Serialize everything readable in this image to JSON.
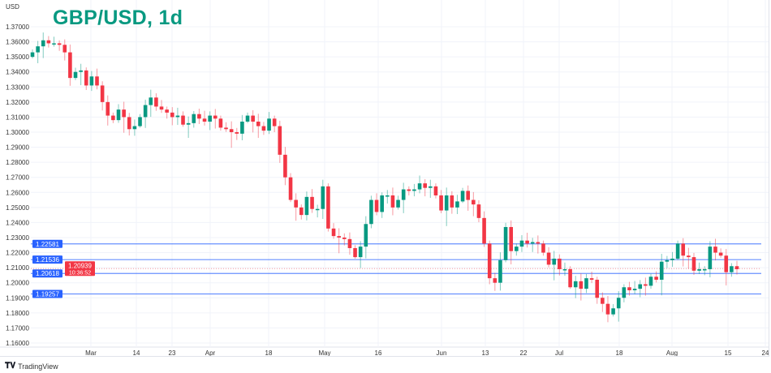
{
  "chart_data": {
    "type": "candlestick",
    "title": "GBP/USD, 1d",
    "ylabel": "USD",
    "ylim": [
      1.155,
      1.375
    ],
    "y_ticks": [
      "1.37000",
      "1.36000",
      "1.35000",
      "1.34000",
      "1.33000",
      "1.32000",
      "1.31000",
      "1.30000",
      "1.29000",
      "1.28000",
      "1.27000",
      "1.26000",
      "1.25000",
      "1.24000",
      "1.23000",
      "1.22000",
      "1.21000",
      "1.20000",
      "1.19000",
      "1.18000",
      "1.17000",
      "1.16000"
    ],
    "x_ticks": [
      "Mar",
      "14",
      "23",
      "Apr",
      "18",
      "May",
      "16",
      "Jun",
      "13",
      "22",
      "Jul",
      "18",
      "Aug",
      "15",
      "24"
    ],
    "close": [
      1.353,
      1.357,
      1.361,
      1.359,
      1.359,
      1.358,
      1.353,
      1.336,
      1.34,
      1.341,
      1.331,
      1.337,
      1.331,
      1.32,
      1.311,
      1.308,
      1.315,
      1.31,
      1.302,
      1.304,
      1.31,
      1.318,
      1.323,
      1.317,
      1.315,
      1.313,
      1.31,
      1.311,
      1.305,
      1.306,
      1.312,
      1.309,
      1.307,
      1.311,
      1.309,
      1.303,
      1.302,
      1.3,
      1.299,
      1.307,
      1.311,
      1.307,
      1.304,
      1.301,
      1.309,
      1.304,
      1.285,
      1.27,
      1.255,
      1.25,
      1.245,
      1.257,
      1.249,
      1.249,
      1.264,
      1.236,
      1.231,
      1.23,
      1.229,
      1.223,
      1.217,
      1.224,
      1.239,
      1.255,
      1.247,
      1.258,
      1.258,
      1.25,
      1.255,
      1.262,
      1.261,
      1.262,
      1.266,
      1.263,
      1.264,
      1.258,
      1.248,
      1.258,
      1.25,
      1.254,
      1.261,
      1.255,
      1.252,
      1.243,
      1.226,
      1.203,
      1.2,
      1.215,
      1.237,
      1.221,
      1.224,
      1.228,
      1.226,
      1.227,
      1.226,
      1.22,
      1.212,
      1.216,
      1.209,
      1.209,
      1.197,
      1.201,
      1.196,
      1.203,
      1.202,
      1.19,
      1.186,
      1.179,
      1.183,
      1.19,
      1.197,
      1.195,
      1.196,
      1.199,
      1.198,
      1.204,
      1.202,
      1.214,
      1.215,
      1.216,
      1.226,
      1.218,
      1.217,
      1.208,
      1.209,
      1.209,
      1.224,
      1.22,
      1.218,
      1.207,
      1.211,
      1.209
    ],
    "first_open": 1.35,
    "levels": [
      {
        "value": 1.22581,
        "label": "1.22581"
      },
      {
        "value": 1.21536,
        "label": "1.21536"
      },
      {
        "value": 1.20618,
        "label": "1.20618"
      },
      {
        "value": 1.19257,
        "label": "1.19257"
      }
    ],
    "current": {
      "value": 1.20939,
      "label": "1.20939",
      "countdown": "10:36:52"
    },
    "colors": {
      "up": "#089981",
      "down": "#f23645",
      "level": "#2962ff",
      "grid": "#f0f3fa"
    }
  },
  "brand": "TradingView"
}
